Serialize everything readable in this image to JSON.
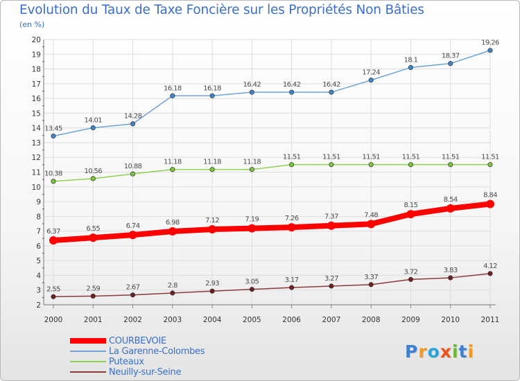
{
  "title": "Evolution du Taux de Taxe Foncière sur les Propriétés Non Bâties",
  "unit": "(en %)",
  "logo": {
    "letters": [
      "P",
      "r",
      "o",
      "x",
      "i",
      "t",
      "i"
    ],
    "colors": [
      "#3e7fd0",
      "#f29a1f",
      "#2ea3d6",
      "#e8541b",
      "#6bb82e",
      "#3e7fd0",
      "#f29a1f"
    ]
  },
  "chart_data": {
    "type": "line",
    "title": "Evolution du Taux de Taxe Foncière sur les Propriétés Non Bâties",
    "ylabel": "(en %)",
    "ylim": [
      2,
      20
    ],
    "yticks": [
      "2",
      "3",
      "4",
      "5",
      "6",
      "7",
      "8",
      "9",
      "10",
      "11",
      "12",
      "13",
      "14",
      "15",
      "16",
      "17",
      "18",
      "19",
      "20"
    ],
    "x": [
      "2000",
      "2001",
      "2002",
      "2003",
      "2004",
      "2005",
      "2006",
      "2007",
      "2008",
      "2009",
      "2010",
      "2011"
    ],
    "series": [
      {
        "name": "COURBEVOIE",
        "color": "#ff0000",
        "bold": true,
        "values": [
          6.37,
          6.55,
          6.74,
          6.98,
          7.12,
          7.19,
          7.26,
          7.37,
          7.48,
          8.15,
          8.54,
          8.84
        ],
        "labels": [
          "6.37",
          "6.55",
          "6.74",
          "6.98",
          "7.12",
          "7.19",
          "7.26",
          "7.37",
          "7.48",
          "8.15",
          "8.54",
          "8.84"
        ]
      },
      {
        "name": "La Garenne-Colombes",
        "color": "#6fa3d6",
        "marker": "#3f86c9",
        "values": [
          13.45,
          14.01,
          14.28,
          16.18,
          16.18,
          16.42,
          16.42,
          16.42,
          17.24,
          18.1,
          18.37,
          19.26
        ],
        "labels": [
          "13.45",
          "14.01",
          "14.28",
          "16.18",
          "16.18",
          "16.42",
          "16.42",
          "16.42",
          "17.24",
          "18.1",
          "18.37",
          "19.26"
        ]
      },
      {
        "name": "Puteaux",
        "color": "#8fd14f",
        "marker": "#7cc43a",
        "values": [
          10.38,
          10.56,
          10.88,
          11.18,
          11.18,
          11.18,
          11.51,
          11.51,
          11.51,
          11.51,
          11.51,
          11.51
        ],
        "labels": [
          "10.38",
          "10.56",
          "10.88",
          "11.18",
          "11.18",
          "11.18",
          "11.51",
          "11.51",
          "11.51",
          "11.51",
          "11.51",
          "11.51"
        ]
      },
      {
        "name": "Neuilly-sur-Seine",
        "color": "#8b3a3a",
        "marker": "#6e1f1f",
        "values": [
          2.55,
          2.59,
          2.67,
          2.8,
          2.93,
          3.05,
          3.17,
          3.27,
          3.37,
          3.72,
          3.83,
          4.12
        ],
        "labels": [
          "2.55",
          "2.59",
          "2.67",
          "2.8",
          "2.93",
          "3.05",
          "3.17",
          "3.27",
          "3.37",
          "3.72",
          "3.83",
          "4.12"
        ]
      }
    ],
    "legend": [
      "COURBEVOIE",
      "La Garenne-Colombes",
      "Puteaux",
      "Neuilly-sur-Seine"
    ]
  }
}
